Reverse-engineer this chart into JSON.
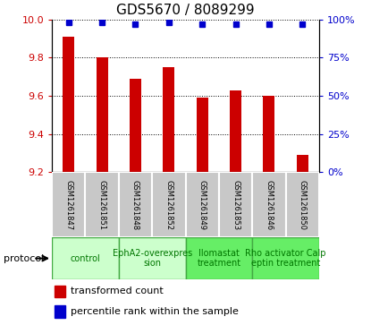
{
  "title": "GDS5670 / 8089299",
  "samples": [
    "GSM1261847",
    "GSM1261851",
    "GSM1261848",
    "GSM1261852",
    "GSM1261849",
    "GSM1261853",
    "GSM1261846",
    "GSM1261850"
  ],
  "bar_values": [
    9.91,
    9.8,
    9.69,
    9.75,
    9.59,
    9.63,
    9.6,
    9.29
  ],
  "percentile_values": [
    98,
    98,
    97,
    98,
    97,
    97,
    97,
    97
  ],
  "ylim_left": [
    9.2,
    10.0
  ],
  "ylim_right": [
    0,
    100
  ],
  "yticks_left": [
    9.2,
    9.4,
    9.6,
    9.8,
    10.0
  ],
  "yticks_right": [
    0,
    25,
    50,
    75,
    100
  ],
  "bar_color": "#cc0000",
  "dot_color": "#0000cc",
  "protocols": [
    {
      "label": "control",
      "samples": [
        0,
        1
      ],
      "color": "#ccffcc",
      "border": "#44aa44"
    },
    {
      "label": "EphA2-overexpres\nsion",
      "samples": [
        2,
        3
      ],
      "color": "#ccffcc",
      "border": "#44aa44"
    },
    {
      "label": "Ilomastat\ntreatment",
      "samples": [
        4,
        5
      ],
      "color": "#66ee66",
      "border": "#44aa44"
    },
    {
      "label": "Rho activator Calp\neptin treatment",
      "samples": [
        6,
        7
      ],
      "color": "#66ee66",
      "border": "#44aa44"
    }
  ],
  "sample_box_color": "#c8c8c8",
  "protocol_text_color": "#007700",
  "ylabel_left_color": "#cc0000",
  "ylabel_right_color": "#0000cc",
  "protocol_label": "protocol",
  "legend_bar_label": "transformed count",
  "legend_dot_label": "percentile rank within the sample",
  "title_fontsize": 11,
  "tick_fontsize": 8,
  "sample_fontsize": 6,
  "protocol_fontsize": 7,
  "legend_fontsize": 8
}
